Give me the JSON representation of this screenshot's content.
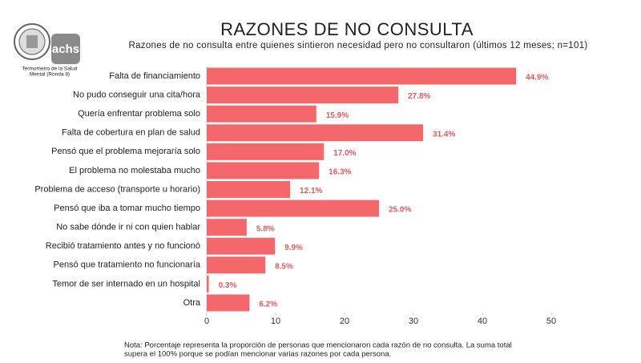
{
  "chart_data": {
    "type": "hbar",
    "title": "RAZONES DE NO CONSULTA",
    "subtitle": "Razones de no consulta entre quienes sintieron necesidad pero no consultaron (últimos 12 meses; n=101)",
    "categories": [
      "Falta de financiamiento",
      "No pudo conseguir una cita/hora",
      "Quería enfrentar problema solo",
      "Falta de cobertura en plan de salud",
      "Pensó que el problema mejoraría solo",
      "El problema no molestaba mucho",
      "Problema de acceso (transporte u horario)",
      "Pensó que iba a tomar mucho tiempo",
      "No sabe dónde ir ni con quien hablar",
      "Recibió tratamiento antes y no funcionó",
      "Pensó que tratamiento no funcionaría",
      "Temor de ser internado en un hospital",
      "Otra"
    ],
    "values": [
      44.9,
      27.8,
      15.9,
      31.4,
      17.0,
      16.3,
      12.1,
      25.0,
      5.8,
      9.9,
      8.5,
      0.3,
      6.2
    ],
    "value_labels": [
      "44.9%",
      "27.8%",
      "15.9%",
      "31.4%",
      "17.0%",
      "16.3%",
      "12.1%",
      "25.0%",
      "5.8%",
      "9.9%",
      "8.5%",
      "0.3%",
      "6.2%"
    ],
    "color": "#f4686c",
    "xlim": [
      0,
      50
    ],
    "xticks": [
      0,
      10,
      20,
      30,
      40,
      50
    ],
    "grid": false,
    "note": [
      "Nota: Porcentaje representa la proporción de personas que mencionaron cada razón de no consulta. La suma total",
      "supera el 100% porque se podían mencionar varias razones por cada persona."
    ]
  },
  "logos": {
    "brand": "achs",
    "caption": [
      "Termometro de la Salud",
      "Mental (Ronda 8)"
    ]
  }
}
